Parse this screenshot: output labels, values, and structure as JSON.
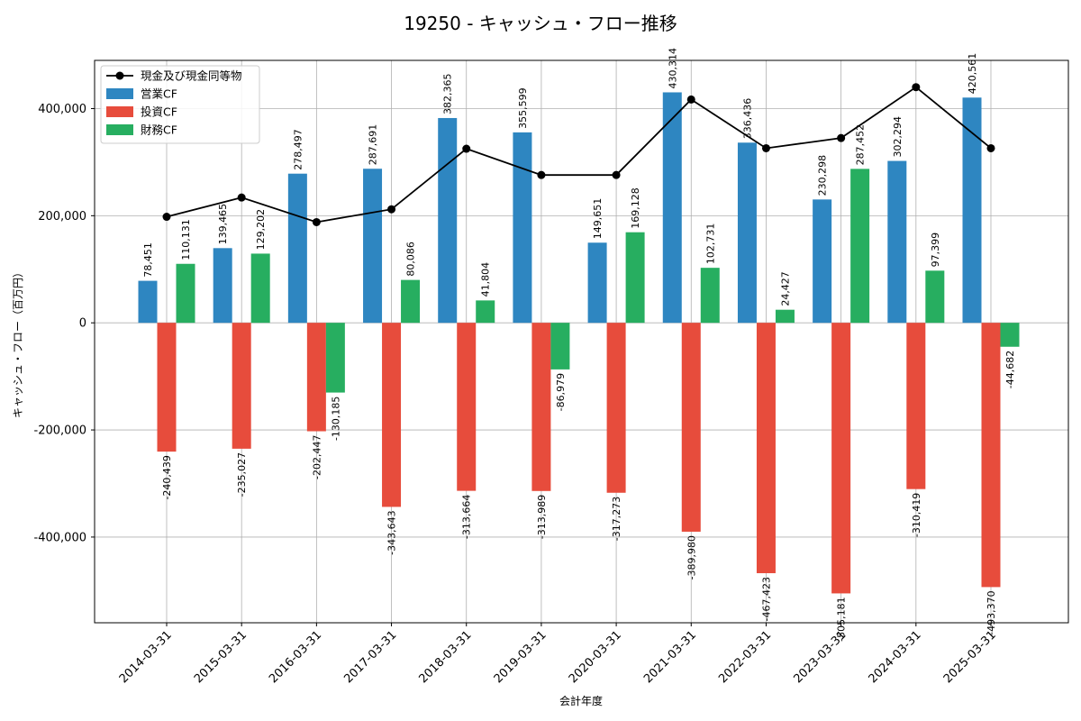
{
  "chart_data": {
    "type": "bar",
    "title": "19250 - キャッシュ・フロー推移",
    "xlabel": "会計年度",
    "ylabel": "キャッシュ・フロー（百万円）",
    "categories": [
      "2014-03-31",
      "2015-03-31",
      "2016-03-31",
      "2017-03-31",
      "2018-03-31",
      "2019-03-31",
      "2020-03-31",
      "2021-03-31",
      "2022-03-31",
      "2023-03-31",
      "2024-03-31",
      "2025-03-31"
    ],
    "ylim": [
      -560000,
      490000
    ],
    "yticks": [
      -400000,
      -200000,
      0,
      200000,
      400000
    ],
    "ytick_labels": [
      "-400,000",
      "-200,000",
      "0",
      "200,000",
      "400,000"
    ],
    "grid": true,
    "legend_position": "top-left",
    "series": [
      {
        "name": "営業CF",
        "kind": "bar",
        "color": "#2e86c1",
        "values": [
          78451,
          139465,
          278497,
          287691,
          382365,
          355599,
          149651,
          430314,
          336436,
          230298,
          302294,
          420561
        ],
        "labels": [
          "78,451",
          "139,465",
          "278,497",
          "287,691",
          "382,365",
          "355,599",
          "149,651",
          "430,314",
          "336,436",
          "230,298",
          "302,294",
          "420,561"
        ]
      },
      {
        "name": "投資CF",
        "kind": "bar",
        "color": "#e74c3c",
        "values": [
          -240439,
          -235027,
          -202447,
          -343643,
          -313664,
          -313989,
          -317273,
          -389980,
          -467423,
          -505181,
          -310419,
          -493370
        ],
        "labels": [
          "-240,439",
          "-235,027",
          "-202,447",
          "-343,643",
          "-313,664",
          "-313,989",
          "-317,273",
          "-389,980",
          "-467,423",
          "-505,181",
          "-310,419",
          "-493,370"
        ]
      },
      {
        "name": "財務CF",
        "kind": "bar",
        "color": "#27ae60",
        "values": [
          110131,
          129202,
          -130185,
          80086,
          41804,
          -86979,
          169128,
          102731,
          24427,
          287452,
          97399,
          -44682
        ],
        "labels": [
          "110,131",
          "129,202",
          "-130,185",
          "80,086",
          "41,804",
          "-86,979",
          "169,128",
          "102,731",
          "24,427",
          "287,452",
          "97,399",
          "-44,682"
        ]
      },
      {
        "name": "現金及び現金同等物",
        "kind": "line",
        "color": "#000000",
        "values": [
          198000,
          234000,
          188000,
          212000,
          325000,
          276000,
          276000,
          417000,
          326000,
          345000,
          440000,
          326000
        ]
      }
    ]
  }
}
